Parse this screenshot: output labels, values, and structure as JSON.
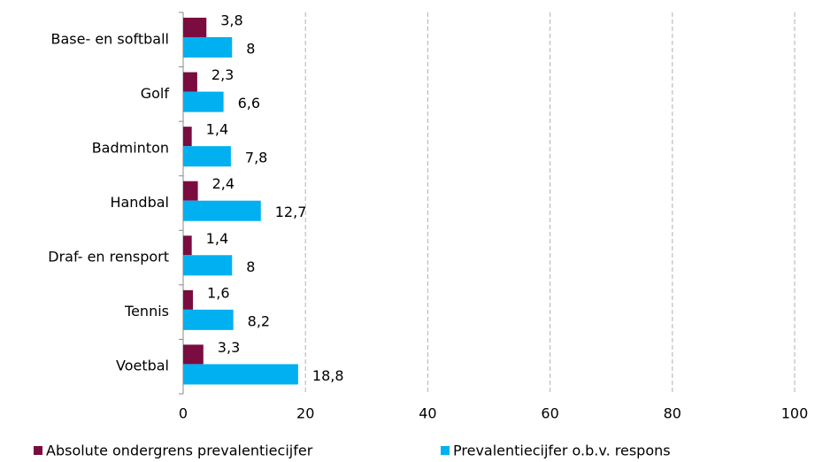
{
  "chart_data": {
    "type": "bar",
    "orientation": "horizontal",
    "categories": [
      "Base- en softball",
      "Golf",
      "Badminton",
      "Handbal",
      "Draf- en rensport",
      "Tennis",
      "Voetbal"
    ],
    "series": [
      {
        "name": "Absolute ondergrens prevalentiecijfer",
        "color": "#7b0c3f",
        "values": [
          3.8,
          2.3,
          1.4,
          2.4,
          1.4,
          1.6,
          3.3
        ],
        "value_labels": [
          "3,8",
          "2,3",
          "1,4",
          "2,4",
          "1,4",
          "1,6",
          "3,3"
        ]
      },
      {
        "name": "Prevalentiecijfer o.b.v. respons",
        "color": "#00b0f0",
        "values": [
          8,
          6.6,
          7.8,
          12.7,
          8,
          8.2,
          18.8
        ],
        "value_labels": [
          "8",
          "6,6",
          "7,8",
          "12,7",
          "8",
          "8,2",
          "18,8"
        ]
      }
    ],
    "xlim": [
      0,
      100
    ],
    "xticks": [
      0,
      20,
      40,
      60,
      80,
      100
    ],
    "grid": true,
    "legend": "bottom"
  }
}
